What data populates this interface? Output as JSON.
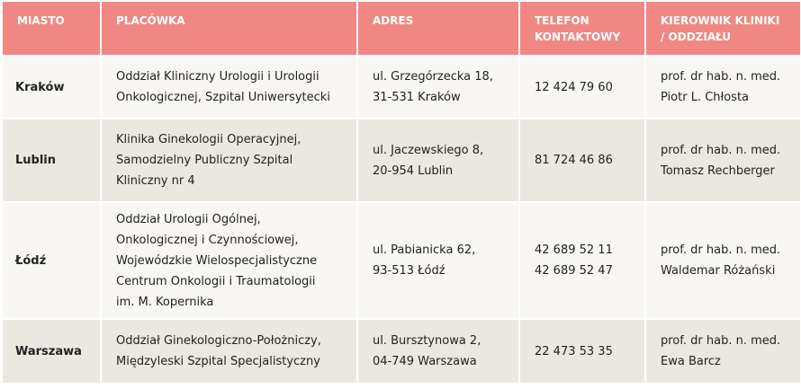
{
  "table": {
    "header": [
      [
        "MIASTO"
      ],
      [
        "PLACÓWKA"
      ],
      [
        "ADRES"
      ],
      [
        "TELEFON",
        "KONTAKTOWY"
      ],
      [
        "KIEROWNIK KLINIKI",
        "/ ODDZIAŁU"
      ]
    ],
    "rows": [
      [
        [
          "Kraków"
        ],
        [
          "Oddział Kliniczny Urologii i Urologii",
          "Onkologicznej, Szpital Uniwersytecki"
        ],
        [
          "ul. Grzegórzecka 18,",
          "31-531 Kraków"
        ],
        [
          "12 424 79 60"
        ],
        [
          "prof. dr hab. n. med.",
          "Piotr L. Chłosta"
        ]
      ],
      [
        [
          "Lublin"
        ],
        [
          "Klinika Ginekologii Operacyjnej,",
          "Samodzielny Publiczny Szpital",
          "Kliniczny nr 4"
        ],
        [
          "ul. Jaczewskiego 8,",
          "20-954 Lublin"
        ],
        [
          "81 724 46 86"
        ],
        [
          "prof. dr hab. n. med.",
          "Tomasz Rechberger"
        ]
      ],
      [
        [
          "Łódź"
        ],
        [
          "Oddział Urologii Ogólnej,",
          "Onkologicznej i Czynnościowej,",
          "Wojewódzkie Wielospecjalistyczne",
          "Centrum Onkologii i Traumatologii",
          "im. M. Kopernika"
        ],
        [
          "ul. Pabianicka 62,",
          "93-513 Łódź"
        ],
        [
          "42 689 52 11",
          "42 689 52 47"
        ],
        [
          "prof. dr hab. n. med.",
          "Waldemar Różański"
        ]
      ],
      [
        [
          "Warszawa"
        ],
        [
          "Oddział Ginekologiczno-Położniczy,",
          "Międzyleski Szpital Specjalistyczny"
        ],
        [
          "ul. Bursztynowa 2,",
          "04-749 Warszawa"
        ],
        [
          "22 473 53 35"
        ],
        [
          "prof. dr hab. n. med.",
          "Ewa Barcz"
        ]
      ]
    ]
  }
}
